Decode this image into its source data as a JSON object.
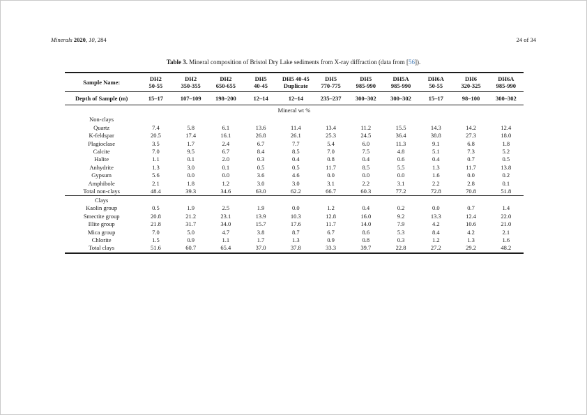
{
  "page": {
    "running_head": {
      "left_parts": [
        {
          "t": "Minerals",
          "i": true
        },
        {
          "t": " "
        },
        {
          "t": "2020",
          "b": true
        },
        {
          "t": ", "
        },
        {
          "t": "10",
          "i": true
        },
        {
          "t": ", 284"
        }
      ],
      "right": "24 of 34"
    },
    "caption_parts": [
      {
        "t": "Table 3.",
        "b": true
      },
      {
        "t": " Mineral composition of Bristol Dry Lake sediments from X-ray diffraction (data from ["
      },
      {
        "t": "56",
        "link": true
      },
      {
        "t": "])."
      }
    ],
    "link_color": "#4079b5"
  },
  "table": {
    "corner_label": "Sample Name:",
    "depth_label": "Depth of Sample (m)",
    "unit_header": "Mineral wt %",
    "columns": [
      {
        "name": "DH2",
        "sub": "50-55"
      },
      {
        "name": "DH2",
        "sub": "350-355"
      },
      {
        "name": "DH2",
        "sub": "650-655"
      },
      {
        "name": "DH5",
        "sub": "40-45"
      },
      {
        "name": "DH5 40-45",
        "sub": "Duplicate"
      },
      {
        "name": "DH5",
        "sub": "770-775"
      },
      {
        "name": "DH5",
        "sub": "985-990"
      },
      {
        "name": "DH5A",
        "sub": "985-990"
      },
      {
        "name": "DH6A",
        "sub": "50-55"
      },
      {
        "name": "DH6",
        "sub": "320-325"
      },
      {
        "name": "DH6A",
        "sub": "985-990"
      }
    ],
    "depths": [
      "15–17",
      "107–109",
      "198–200",
      "12–14",
      "12–14",
      "235–237",
      "300–302",
      "300–302",
      "15–17",
      "98–100",
      "300–302"
    ],
    "sections": [
      {
        "label": "Non-clays",
        "rows": [
          {
            "label": "Quartz",
            "values": [
              "7.4",
              "5.8",
              "6.1",
              "13.6",
              "11.4",
              "13.4",
              "11.2",
              "15.5",
              "14.3",
              "14.2",
              "12.4"
            ]
          },
          {
            "label": "K-feldspar",
            "values": [
              "20.5",
              "17.4",
              "16.1",
              "26.8",
              "26.1",
              "25.3",
              "24.5",
              "36.4",
              "38.8",
              "27.3",
              "18.0"
            ]
          },
          {
            "label": "Plagioclase",
            "values": [
              "3.5",
              "1.7",
              "2.4",
              "6.7",
              "7.7",
              "5.4",
              "6.0",
              "11.3",
              "9.1",
              "6.8",
              "1.8"
            ]
          },
          {
            "label": "Calcite",
            "values": [
              "7.0",
              "9.5",
              "6.7",
              "8.4",
              "8.5",
              "7.0",
              "7.5",
              "4.8",
              "5.1",
              "7.3",
              "5.2"
            ]
          },
          {
            "label": "Halite",
            "values": [
              "1.1",
              "0.1",
              "2.0",
              "0.3",
              "0.4",
              "0.8",
              "0.4",
              "0.6",
              "0.4",
              "0.7",
              "0.5"
            ]
          },
          {
            "label": "Anhydrite",
            "values": [
              "1.3",
              "3.0",
              "0.1",
              "0.5",
              "0.5",
              "11.7",
              "8.5",
              "5.5",
              "1.3",
              "11.7",
              "13.8"
            ]
          },
          {
            "label": "Gypsum",
            "values": [
              "5.6",
              "0.0",
              "0.0",
              "3.6",
              "4.6",
              "0.0",
              "0.0",
              "0.0",
              "1.6",
              "0.0",
              "0.2"
            ]
          },
          {
            "label": "Amphibole",
            "values": [
              "2.1",
              "1.8",
              "1.2",
              "3.0",
              "3.0",
              "3.1",
              "2.2",
              "3.1",
              "2.2",
              "2.8",
              "0.1"
            ]
          }
        ],
        "total": {
          "label": "Total non-clays",
          "values": [
            "48.4",
            "39.3",
            "34.6",
            "63.0",
            "62.2",
            "66.7",
            "60.3",
            "77.2",
            "72.8",
            "70.8",
            "51.8"
          ]
        }
      },
      {
        "label": "Clays",
        "rows": [
          {
            "label": "Kaolin group",
            "values": [
              "0.5",
              "1.9",
              "2.5",
              "1.9",
              "0.0",
              "1.2",
              "0.4",
              "0.2",
              "0.0",
              "0.7",
              "1.4"
            ]
          },
          {
            "label": "Smectite group",
            "values": [
              "20.8",
              "21.2",
              "23.1",
              "13.9",
              "10.3",
              "12.8",
              "16.0",
              "9.2",
              "13.3",
              "12.4",
              "22.0"
            ]
          },
          {
            "label": "Illite group",
            "values": [
              "21.8",
              "31.7",
              "34.0",
              "15.7",
              "17.6",
              "11.7",
              "14.0",
              "7.9",
              "4.2",
              "10.6",
              "21.0"
            ]
          },
          {
            "label": "Mica group",
            "values": [
              "7.0",
              "5.0",
              "4.7",
              "3.8",
              "8.7",
              "6.7",
              "8.6",
              "5.3",
              "8.4",
              "4.2",
              "2.1"
            ]
          },
          {
            "label": "Chlorite",
            "values": [
              "1.5",
              "0.9",
              "1.1",
              "1.7",
              "1.3",
              "0.9",
              "0.8",
              "0.3",
              "1.2",
              "1.3",
              "1.6"
            ]
          }
        ],
        "total": {
          "label": "Total clays",
          "values": [
            "51.6",
            "60.7",
            "65.4",
            "37.0",
            "37.8",
            "33.3",
            "39.7",
            "22.8",
            "27.2",
            "29.2",
            "48.2"
          ]
        }
      }
    ]
  }
}
